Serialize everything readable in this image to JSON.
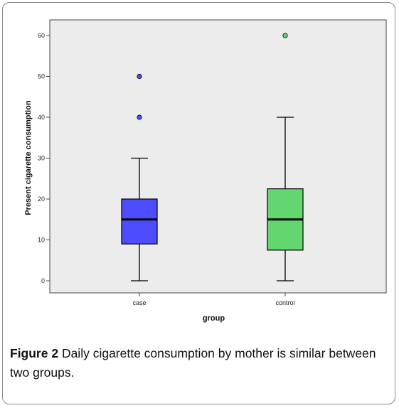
{
  "chart_data": {
    "type": "boxplot",
    "xlabel": "group",
    "ylabel": "Present cigarette consumption",
    "ylim": [
      0,
      60
    ],
    "yticks": [
      0,
      10,
      20,
      30,
      40,
      50,
      60
    ],
    "grid": false,
    "categories": [
      "case",
      "control"
    ],
    "boxes": [
      {
        "category": "case",
        "color": "#4d4dff",
        "min": 0,
        "q1": 9,
        "median": 15,
        "q3": 20,
        "max": 30,
        "outliers": [
          40,
          50
        ]
      },
      {
        "category": "control",
        "color": "#63d66f",
        "min": 0,
        "q1": 7.5,
        "median": 15,
        "q3": 22.5,
        "max": 40,
        "outliers": [
          60
        ]
      }
    ]
  },
  "caption": {
    "label": "Figure 2",
    "text": " Daily cigarette consumption by mother is similar between two groups."
  },
  "colors": {
    "plot_background": "#ececec",
    "axis": "#444444"
  }
}
